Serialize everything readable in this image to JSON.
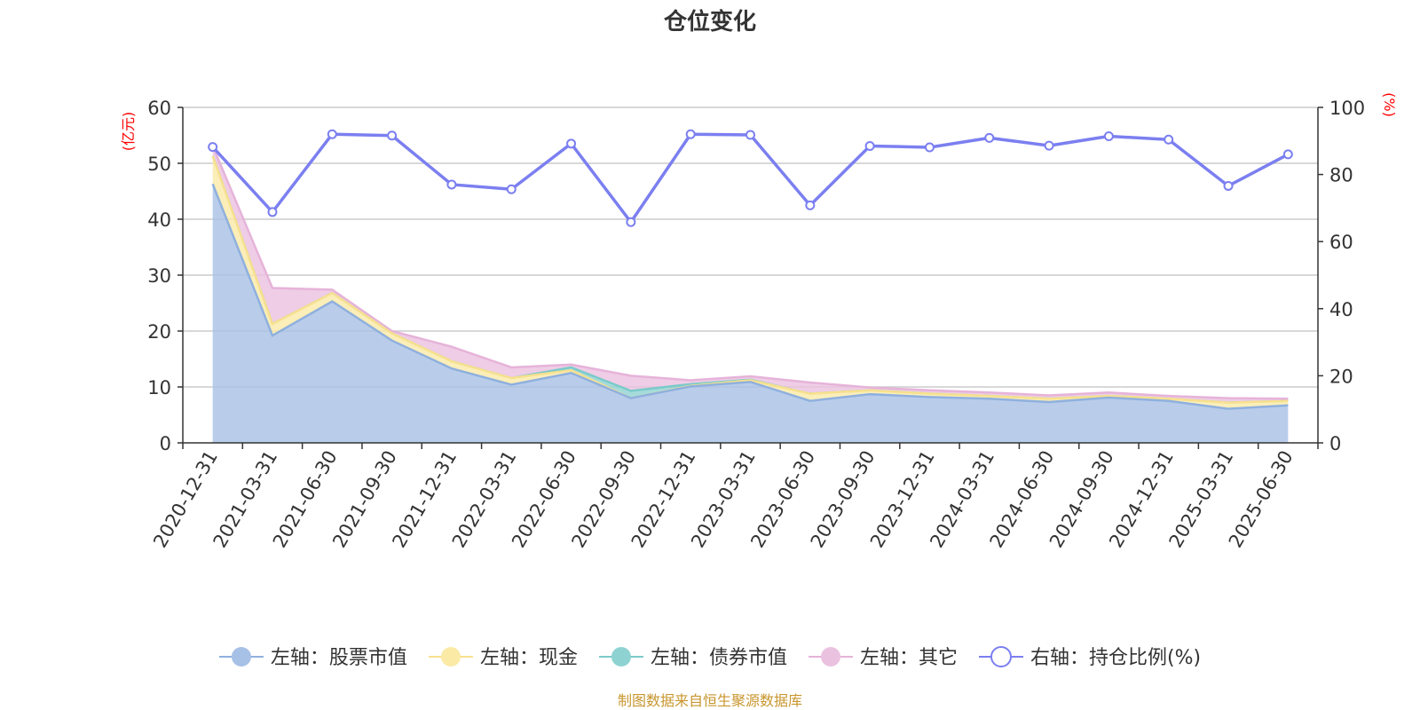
{
  "chart_data": {
    "type": "area",
    "title": "仓位变化",
    "left_axis_unit": "(亿元)",
    "right_axis_unit": "(%)",
    "categories": [
      "2020-12-31",
      "2021-03-31",
      "2021-06-30",
      "2021-09-30",
      "2021-12-31",
      "2022-03-31",
      "2022-06-30",
      "2022-09-30",
      "2022-12-31",
      "2023-03-31",
      "2023-06-30",
      "2023-09-30",
      "2023-12-31",
      "2024-03-31",
      "2024-06-30",
      "2024-09-30",
      "2024-12-31",
      "2025-03-31",
      "2025-06-30"
    ],
    "left_axis": {
      "min": 0,
      "max": 60,
      "ticks": [
        0,
        10,
        20,
        30,
        40,
        50,
        60
      ]
    },
    "right_axis": {
      "min": 0,
      "max": 100,
      "ticks": [
        0,
        20,
        40,
        60,
        80,
        100
      ]
    },
    "stacked_series": [
      {
        "name": "左轴：股票市值",
        "color": "#a7c0e6",
        "line": "#8fb0de",
        "values": [
          46.3,
          19.2,
          25.3,
          18.3,
          13.3,
          10.4,
          12.5,
          8.0,
          10.1,
          10.9,
          7.5,
          8.7,
          8.2,
          7.9,
          7.3,
          8.1,
          7.5,
          6.1,
          6.7
        ]
      },
      {
        "name": "左轴：现金",
        "color": "#faeaa6",
        "line": "#f7e08f",
        "values": [
          5.0,
          2.1,
          1.5,
          1.3,
          1.3,
          1.2,
          0.5,
          0.0,
          0.1,
          0.3,
          1.3,
          0.7,
          0.6,
          0.5,
          0.6,
          0.3,
          0.4,
          1.1,
          0.8
        ]
      },
      {
        "name": "左轴：债券市值",
        "color": "#8fd2d2",
        "line": "#7ccaca",
        "values": [
          0.0,
          0.0,
          0.0,
          0.0,
          0.0,
          0.0,
          0.5,
          1.3,
          0.3,
          0.1,
          0.0,
          0.0,
          0.0,
          0.0,
          0.0,
          0.0,
          0.0,
          0.0,
          0.0
        ]
      },
      {
        "name": "左轴：其它",
        "color": "#ebc1e0",
        "line": "#e6b3d9",
        "values": [
          1.8,
          6.4,
          0.6,
          0.4,
          2.6,
          1.9,
          0.5,
          2.7,
          0.7,
          0.6,
          2.0,
          0.5,
          0.6,
          0.6,
          0.6,
          0.6,
          0.5,
          0.8,
          0.4
        ]
      }
    ],
    "line_series": {
      "name": "右轴：持仓比例(%)",
      "color": "#7b7ff0",
      "values": [
        88.2,
        68.8,
        92.0,
        91.6,
        77.0,
        75.6,
        89.2,
        65.8,
        92.0,
        91.8,
        70.8,
        88.5,
        88.1,
        90.9,
        88.6,
        91.4,
        90.4,
        76.6,
        86.0
      ]
    },
    "legend_placement": "bottom",
    "grid": true
  },
  "footer": "制图数据来自恒生聚源数据库"
}
